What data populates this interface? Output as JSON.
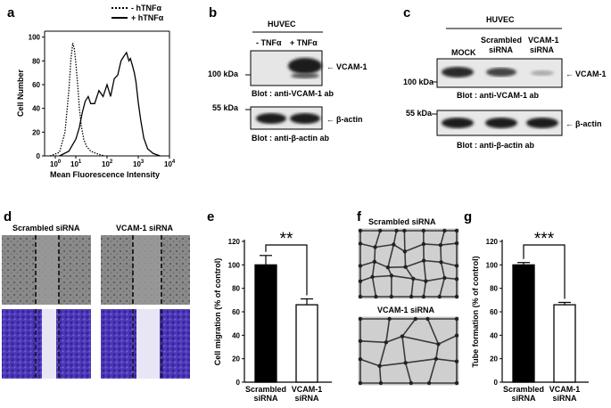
{
  "panels": {
    "a": "a",
    "b": "b",
    "c": "c",
    "d": "d",
    "e": "e",
    "f": "f",
    "g": "g"
  },
  "panel_a": {
    "legend_minus": "- hTNFα",
    "legend_plus": "+ hTNFα",
    "ylabel": "Cell Number",
    "xlabel": "Mean Fluorescence Intensity",
    "yticks": [
      "0",
      "20",
      "40",
      "60",
      "80",
      "100"
    ],
    "xticks_base": [
      "10",
      "10",
      "10",
      "10",
      "10"
    ],
    "xticks_exp": [
      "0",
      "1",
      "2",
      "3",
      "4"
    ]
  },
  "panel_b": {
    "cell": "HUVEC",
    "lane1": "- TNFα",
    "lane2": "+ TNFα",
    "mw_top": "100 kDa",
    "mw_bottom": "55 kDa",
    "band_top": "VCAM-1",
    "band_bottom": "β-actin",
    "blot_top": "Blot : anti-VCAM-1 ab",
    "blot_bottom": "Blot : anti-β-actin ab"
  },
  "panel_c": {
    "cell": "HUVEC",
    "lane1": "MOCK",
    "lane2_l1": "Scrambled",
    "lane2_l2": "siRNA",
    "lane3_l1": "VCAM-1",
    "lane3_l2": "siRNA",
    "mw_top": "100 kDa",
    "mw_bottom": "55 kDa",
    "band_top": "VCAM-1",
    "band_bottom": "β-actin",
    "blot_top": "Blot : anti-VCAM-1 ab",
    "blot_bottom": "Blot : anti-β-actin ab"
  },
  "panel_d": {
    "col1": "Scrambled siRNA",
    "col2": "VCAM-1 siRNA"
  },
  "panel_f": {
    "top": "Scrambled siRNA",
    "bottom": "VCAM-1 siRNA"
  },
  "chart_data": [
    {
      "panel": "a",
      "type": "line",
      "ylim": [
        0,
        105
      ],
      "xscale": "log",
      "xlim": [
        1,
        10000
      ],
      "series": [
        {
          "name": "- hTNFα",
          "style": "dotted",
          "x": [
            1.5,
            3,
            4.5,
            6,
            7,
            8,
            9,
            10,
            11.5,
            13,
            15,
            18,
            22,
            30,
            45,
            80
          ],
          "y": [
            0,
            3,
            20,
            55,
            82,
            95,
            90,
            78,
            60,
            40,
            25,
            14,
            8,
            4,
            2,
            0
          ]
        },
        {
          "name": "+ hTNFα",
          "style": "solid",
          "x": [
            3,
            6,
            10,
            13,
            16,
            20,
            25,
            30,
            40,
            55,
            75,
            100,
            130,
            170,
            220,
            280,
            350,
            420,
            500,
            560,
            650,
            750,
            850,
            1000,
            1200,
            1500,
            2000,
            3000,
            5000
          ],
          "y": [
            0,
            4,
            14,
            24,
            36,
            46,
            50,
            44,
            44,
            55,
            50,
            60,
            50,
            65,
            68,
            80,
            84,
            87,
            80,
            82,
            76,
            70,
            62,
            45,
            30,
            15,
            6,
            2,
            0
          ]
        }
      ],
      "colors": {
        "line": "#000000"
      }
    },
    {
      "panel": "e",
      "type": "bar",
      "categories": [
        "Scrambled siRNA",
        "VCAM-1 siRNA"
      ],
      "values": [
        100,
        66
      ],
      "errors": [
        8,
        5
      ],
      "ylabel": "Cell migration (% of control)",
      "ylim": [
        0,
        120
      ],
      "yticks": [
        0,
        20,
        40,
        60,
        80,
        100,
        120
      ],
      "significance": "**",
      "fills": [
        "#000000",
        "#ffffff"
      ]
    },
    {
      "panel": "g",
      "type": "bar",
      "categories": [
        "Scrambled siRNA",
        "VCAM-1 siRNA"
      ],
      "values": [
        100,
        66
      ],
      "errors": [
        2,
        2
      ],
      "ylabel": "Tube formation (% of control)",
      "ylim": [
        0,
        120
      ],
      "yticks": [
        0,
        20,
        40,
        60,
        80,
        100,
        120
      ],
      "significance": "***",
      "fills": [
        "#000000",
        "#ffffff"
      ]
    }
  ]
}
